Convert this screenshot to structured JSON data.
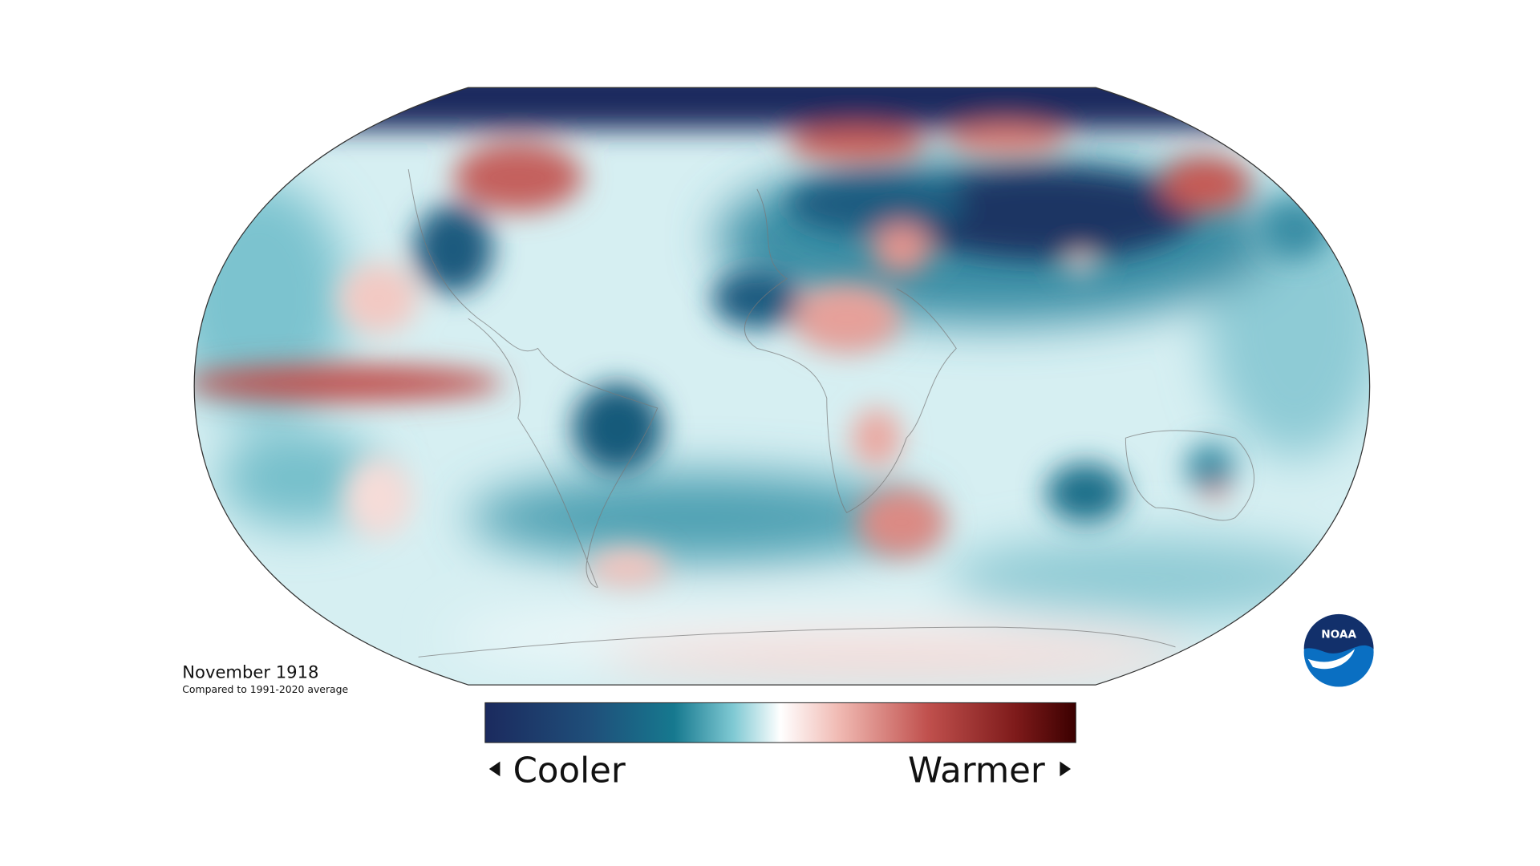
{
  "title": "November 1918",
  "subtitle": "Compared to 1991-2020 average",
  "legend": {
    "low_label": "Cooler",
    "high_label": "Warmer"
  },
  "logo": {
    "text": "NOAA"
  }
}
